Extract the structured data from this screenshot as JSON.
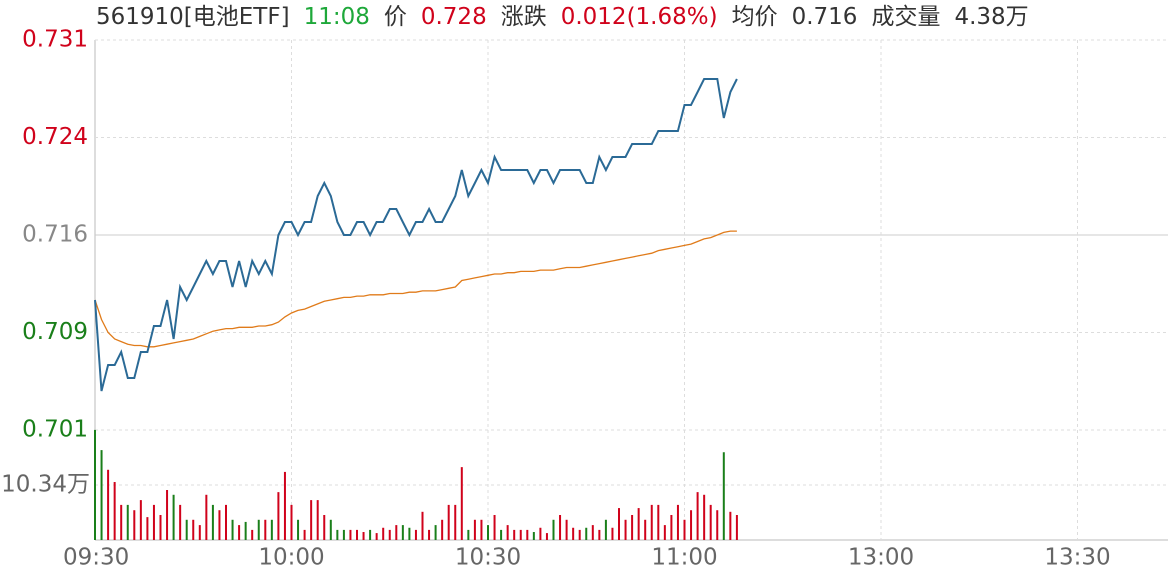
{
  "chart_data": {
    "type": "line",
    "header": [
      {
        "text": "561910[电池ETF]",
        "color": "#333333"
      },
      {
        "text": "11:08",
        "color": "#1ea83a"
      },
      {
        "text": "价",
        "color": "#333333"
      },
      {
        "text": "0.728",
        "color": "#d0021b"
      },
      {
        "text": "涨跌",
        "color": "#333333"
      },
      {
        "text": "0.012(1.68%)",
        "color": "#d0021b"
      },
      {
        "text": "均价",
        "color": "#333333"
      },
      {
        "text": "0.716",
        "color": "#333333"
      },
      {
        "text": "成交量",
        "color": "#333333"
      },
      {
        "text": "4.38万",
        "color": "#333333"
      }
    ],
    "x": [
      "09:30",
      "09:31",
      "09:32",
      "09:33",
      "09:34",
      "09:35",
      "09:36",
      "09:37",
      "09:38",
      "09:39",
      "09:40",
      "09:41",
      "09:42",
      "09:43",
      "09:44",
      "09:45",
      "09:46",
      "09:47",
      "09:48",
      "09:49",
      "09:50",
      "09:51",
      "09:52",
      "09:53",
      "09:54",
      "09:55",
      "09:56",
      "09:57",
      "09:58",
      "09:59",
      "10:00",
      "10:01",
      "10:02",
      "10:03",
      "10:04",
      "10:05",
      "10:06",
      "10:07",
      "10:08",
      "10:09",
      "10:10",
      "10:11",
      "10:12",
      "10:13",
      "10:14",
      "10:15",
      "10:16",
      "10:17",
      "10:18",
      "10:19",
      "10:20",
      "10:21",
      "10:22",
      "10:23",
      "10:24",
      "10:25",
      "10:26",
      "10:27",
      "10:28",
      "10:29",
      "10:30",
      "10:31",
      "10:32",
      "10:33",
      "10:34",
      "10:35",
      "10:36",
      "10:37",
      "10:38",
      "10:39",
      "10:40",
      "10:41",
      "10:42",
      "10:43",
      "10:44",
      "10:45",
      "10:46",
      "10:47",
      "10:48",
      "10:49",
      "10:50",
      "10:51",
      "10:52",
      "10:53",
      "10:54",
      "10:55",
      "10:56",
      "10:57",
      "10:58",
      "10:59",
      "11:00",
      "11:01",
      "11:02",
      "11:03",
      "11:04",
      "11:05",
      "11:06",
      "11:07",
      "11:08"
    ],
    "series": [
      {
        "color": "#2b6a96",
        "values": [
          0.711,
          0.704,
          0.706,
          0.706,
          0.707,
          0.705,
          0.705,
          0.707,
          0.707,
          0.709,
          0.709,
          0.711,
          0.708,
          0.712,
          0.711,
          0.712,
          0.713,
          0.714,
          0.713,
          0.714,
          0.714,
          0.712,
          0.714,
          0.712,
          0.714,
          0.713,
          0.714,
          0.713,
          0.716,
          0.717,
          0.717,
          0.716,
          0.717,
          0.717,
          0.719,
          0.72,
          0.719,
          0.717,
          0.716,
          0.716,
          0.717,
          0.717,
          0.716,
          0.717,
          0.717,
          0.718,
          0.718,
          0.717,
          0.716,
          0.717,
          0.717,
          0.718,
          0.717,
          0.717,
          0.718,
          0.719,
          0.721,
          0.719,
          0.72,
          0.721,
          0.72,
          0.722,
          0.721,
          0.721,
          0.721,
          0.721,
          0.721,
          0.72,
          0.721,
          0.721,
          0.72,
          0.721,
          0.721,
          0.721,
          0.721,
          0.72,
          0.72,
          0.722,
          0.721,
          0.722,
          0.722,
          0.722,
          0.723,
          0.723,
          0.723,
          0.723,
          0.724,
          0.724,
          0.724,
          0.724,
          0.726,
          0.726,
          0.727,
          0.728,
          0.728,
          0.728,
          0.725,
          0.727,
          0.728
        ]
      },
      {
        "color": "#e07b1a",
        "values": [
          0.711,
          0.7095,
          0.7085,
          0.708,
          0.7078,
          0.7076,
          0.7075,
          0.7075,
          0.7074,
          0.7074,
          0.7075,
          0.7076,
          0.7077,
          0.7078,
          0.7079,
          0.708,
          0.7082,
          0.7084,
          0.7086,
          0.7087,
          0.7088,
          0.7088,
          0.7089,
          0.7089,
          0.7089,
          0.709,
          0.709,
          0.7091,
          0.7093,
          0.7097,
          0.71,
          0.7102,
          0.7103,
          0.7105,
          0.7107,
          0.7109,
          0.711,
          0.7111,
          0.7112,
          0.7112,
          0.7113,
          0.7113,
          0.7114,
          0.7114,
          0.7114,
          0.7115,
          0.7115,
          0.7115,
          0.7116,
          0.7116,
          0.7117,
          0.7117,
          0.7117,
          0.7118,
          0.7119,
          0.712,
          0.7125,
          0.7126,
          0.7127,
          0.7128,
          0.7129,
          0.713,
          0.713,
          0.7131,
          0.7131,
          0.7132,
          0.7132,
          0.7132,
          0.7133,
          0.7133,
          0.7133,
          0.7134,
          0.7135,
          0.7135,
          0.7135,
          0.7136,
          0.7137,
          0.7138,
          0.7139,
          0.714,
          0.7141,
          0.7142,
          0.7143,
          0.7144,
          0.7145,
          0.7146,
          0.7148,
          0.7149,
          0.715,
          0.7151,
          0.7152,
          0.7153,
          0.7155,
          0.7157,
          0.7158,
          0.716,
          0.7162,
          0.7163,
          0.7163
        ]
      }
    ],
    "ylim": [
      0.701,
      0.731
    ],
    "yticks": [
      0.731,
      {
        "value": 0.7235,
        "label": "0.724"
      },
      0.716,
      {
        "value": 0.7085,
        "label": "0.709"
      },
      0.701
    ],
    "xticks": [
      "09:30",
      "10:00",
      "10:30",
      "11:00",
      "13:00",
      "13:30"
    ],
    "grid": true,
    "up_color": "#d0021b",
    "down_color": "#1a7f1a",
    "flat_color": "#888888",
    "volume": {
      "values": [
        20.7,
        16.9,
        13.2,
        10.9,
        6.6,
        6.6,
        5.6,
        7.5,
        4.3,
        6.6,
        4.7,
        9.4,
        8.5,
        6.6,
        3.8,
        3.8,
        2.8,
        8.5,
        6.6,
        5.6,
        6.6,
        3.8,
        2.8,
        3.4,
        1.9,
        3.8,
        3.8,
        3.8,
        9.0,
        12.8,
        6.6,
        3.8,
        1.9,
        7.5,
        7.5,
        4.7,
        3.8,
        1.9,
        1.9,
        1.9,
        1.9,
        1.5,
        1.9,
        1.3,
        2.3,
        1.9,
        2.8,
        2.8,
        2.3,
        1.9,
        5.3,
        1.9,
        2.8,
        3.8,
        6.6,
        6.6,
        13.7,
        1.9,
        3.8,
        3.8,
        2.8,
        4.7,
        1.9,
        2.8,
        1.9,
        1.9,
        1.9,
        1.5,
        2.3,
        1.3,
        3.8,
        4.7,
        3.8,
        2.3,
        1.9,
        2.3,
        2.8,
        1.9,
        3.8,
        2.3,
        6.0,
        3.8,
        4.7,
        6.0,
        3.8,
        6.6,
        6.6,
        2.8,
        4.7,
        6.6,
        3.8,
        5.6,
        9.0,
        8.5,
        6.6,
        5.6,
        16.5,
        5.3,
        4.7
      ],
      "ylim": [
        0,
        20.68
      ],
      "yticks": [
        {
          "value": 10.34,
          "label": "10.34万"
        }
      ]
    }
  }
}
